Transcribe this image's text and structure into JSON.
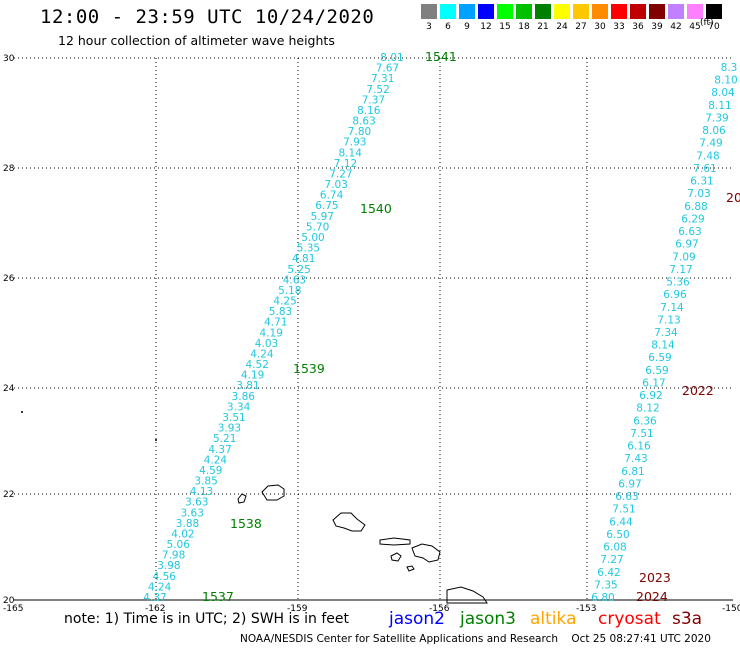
{
  "header": {
    "title": "12:00 - 23:59 UTC 10/24/2020",
    "subtitle": "12 hour collection of altimeter wave heights"
  },
  "scale": {
    "unit": "(ft)",
    "bins": [
      {
        "label": "3",
        "color": "#808080"
      },
      {
        "label": "6",
        "color": "#00ffff"
      },
      {
        "label": "9",
        "color": "#00a0ff"
      },
      {
        "label": "12",
        "color": "#0000ff"
      },
      {
        "label": "15",
        "color": "#00ff00"
      },
      {
        "label": "18",
        "color": "#00c000"
      },
      {
        "label": "21",
        "color": "#008000"
      },
      {
        "label": "24",
        "color": "#ffff00"
      },
      {
        "label": "27",
        "color": "#ffc800"
      },
      {
        "label": "30",
        "color": "#ff8c00"
      },
      {
        "label": "33",
        "color": "#ff0000"
      },
      {
        "label": "36",
        "color": "#c00000"
      },
      {
        "label": "39",
        "color": "#800000"
      },
      {
        "label": "42",
        "color": "#c080ff"
      },
      {
        "label": "45",
        "color": "#ff80ff"
      },
      {
        "label": "70",
        "color": "#000000"
      }
    ]
  },
  "map": {
    "lon_ticks": [
      "-165",
      "-162",
      "-159",
      "-156",
      "-153",
      "-150"
    ],
    "lat_ticks": [
      "30",
      "28",
      "26",
      "24",
      "22",
      "20"
    ],
    "tracks": [
      {
        "values": [
          "8.01",
          "7.67",
          "7.31",
          "7.52",
          "7.37",
          "8.16",
          "8.63",
          "7.80",
          "7.93",
          "8.14",
          "7.12",
          "7.27",
          "7.03",
          "6.74",
          "6.75",
          "5.97",
          "5.70",
          "5.00",
          "5.35",
          "4.81",
          "5.25",
          "4.63",
          "5.18",
          "4.25",
          "5.83",
          "4.71",
          "4.19",
          "4.03",
          "4.24",
          "4.52",
          "4.19",
          "3.81",
          "3.86",
          "3.34",
          "3.51",
          "3.93",
          "5.21",
          "4.37",
          "4.24",
          "4.59",
          "3.85",
          "4.13",
          "3.63",
          "3.63",
          "3.88",
          "4.02",
          "5.06",
          "7.98",
          "3.98",
          "4.56",
          "4.24",
          "4.37"
        ],
        "passes": [
          {
            "label": "1541",
            "color": "#008000"
          },
          {
            "label": "1540",
            "color": "#008000"
          },
          {
            "label": "1539",
            "color": "#008000"
          },
          {
            "label": "1538",
            "color": "#008000"
          },
          {
            "label": "1537",
            "color": "#008000"
          }
        ]
      },
      {
        "values": [
          "8.3",
          "8.10",
          "8.04",
          "8.11",
          "7.39",
          "8.06",
          "7.49",
          "7.48",
          "7.61",
          "6.31",
          "7.03",
          "6.88",
          "6.29",
          "6.63",
          "6.97",
          "7.09",
          "7.17",
          "5.36",
          "6.96",
          "7.14",
          "7.13",
          "7.34",
          "8.14",
          "6.59",
          "6.59",
          "6.17",
          "6.92",
          "8.12",
          "6.36",
          "7.51",
          "6.16",
          "7.43",
          "6.81",
          "6.97",
          "6.63",
          "7.51",
          "6.44",
          "6.50",
          "6.08",
          "7.27",
          "6.42",
          "7.35",
          "6.80"
        ],
        "passes": [
          {
            "label": "20",
            "color": "#800000"
          },
          {
            "label": "2022",
            "color": "#800000"
          },
          {
            "label": "2023",
            "color": "#800000"
          },
          {
            "label": "2024",
            "color": "#800000"
          }
        ]
      }
    ]
  },
  "footer": {
    "note": "note: 1) Time is in UTC; 2) SWH is in feet",
    "missions": [
      {
        "name": "jason2",
        "color": "#0000ff"
      },
      {
        "name": "jason3",
        "color": "#008000"
      },
      {
        "name": "altika",
        "color": "#ffa500"
      },
      {
        "name": "cryosat",
        "color": "#ff0000"
      },
      {
        "name": "s3a",
        "color": "#800000"
      }
    ],
    "credit": "NOAA/NESDIS Center for Satellite Applications and Research    Oct 25 08:27:41 UTC 2020"
  }
}
